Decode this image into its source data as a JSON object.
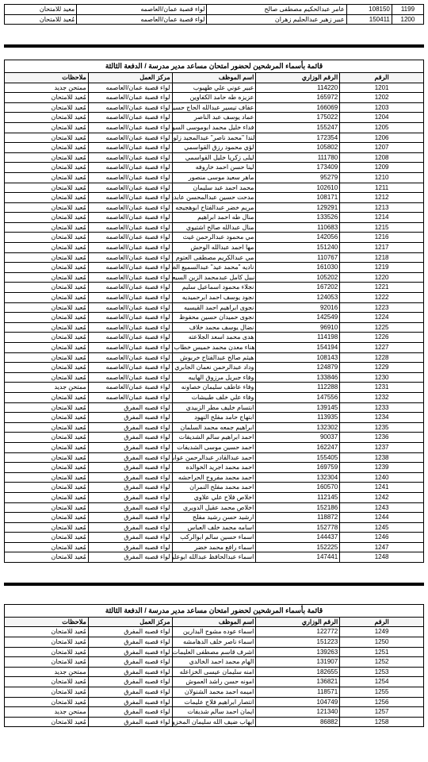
{
  "titles": {
    "main": "قائمة بأسماء المرشحين لحضور امتحان مساعد مدير مدرسة / الدفعة الثالثة"
  },
  "headers": {
    "idx": "الرقم",
    "ministry": "الرقم الوزاري",
    "employee": "اسم الموظف",
    "center": "مركز العمل",
    "notes": "ملاحظات"
  },
  "topRows": [
    {
      "idx": "1199",
      "min": "108150",
      "name": "عامر عبدالحكيم مصطفى صالح",
      "center": "لواء قصبة عمان/العاصمه",
      "notes": "معيد للامتحان"
    },
    {
      "idx": "1200",
      "min": "150411",
      "name": "عبير زهير عبدالحليم زهران",
      "center": "لواء قصبة عمان/العاصمه",
      "notes": "مُعيد للامتحان"
    }
  ],
  "section1": [
    {
      "idx": "1201",
      "min": "114220",
      "name": "عبير عوني علي طهبوب",
      "center": "لواء قصبة عمان/العاصمه",
      "notes": "ممتحن جديد"
    },
    {
      "idx": "1202",
      "min": "165972",
      "name": "عزيزه طه حامد الكفاوين",
      "center": "لواء قصبة عمان/العاصمه",
      "notes": "مُعيد للامتحان"
    },
    {
      "idx": "1203",
      "min": "166069",
      "name": "عفاف تيسير عبدالله الحاج حسين",
      "center": "لواء قصبة عمان/العاصمه",
      "notes": "مُعيد للامتحان"
    },
    {
      "idx": "1204",
      "min": "175022",
      "name": "عماد يوسف عبد الناصر",
      "center": "لواء قصبة عمان/العاصمه",
      "notes": "مُعيد للامتحان"
    },
    {
      "idx": "1205",
      "min": "155247",
      "name": "فداء خليل محمد ابوموسى السوطري",
      "center": "لواء قصبة عمان/العاصمه",
      "notes": "مُعيد للامتحان"
    },
    {
      "idx": "1206",
      "min": "172354",
      "name": "لندا \"محمد ناصر\" عبدالمجيد زلوم",
      "center": "لواء قصبة عمان/العاصمه",
      "notes": "مُعيد للامتحان"
    },
    {
      "idx": "1207",
      "min": "105802",
      "name": "لؤي محمود رزق القواسمي",
      "center": "لواء قصبة عمان/العاصمه",
      "notes": "مُعيد للامتحان"
    },
    {
      "idx": "1208",
      "min": "111780",
      "name": "ليلى زكريا خليل القواسمي",
      "center": "لواء قصبة عمان/العاصمه",
      "notes": "مُعيد للامتحان"
    },
    {
      "idx": "1209",
      "min": "173409",
      "name": "لينا حسن احمد خاروفه",
      "center": "لواء قصبة عمان/العاصمه",
      "notes": "مُعيد للامتحان"
    },
    {
      "idx": "1210",
      "min": "95279",
      "name": "ماهر سعيد موسى منصور",
      "center": "لواء قصبة عمان/العاصمه",
      "notes": "مُعيد للامتحان"
    },
    {
      "idx": "1211",
      "min": "102610",
      "name": "محمد احمد عبد سليمان",
      "center": "لواء قصبة عمان/العاصمه",
      "notes": "مُعيد للامتحان"
    },
    {
      "idx": "1212",
      "min": "108171",
      "name": "مدحت حسين عبدالمحسن عابدين",
      "center": "لواء قصبة عمان/العاصمه",
      "notes": "مُعيد للامتحان"
    },
    {
      "idx": "1213",
      "min": "129291",
      "name": "مريم خضر عبدالفتاح ابوهجيجه",
      "center": "لواء قصبة عمان/العاصمه",
      "notes": "مُعيد للامتحان"
    },
    {
      "idx": "1214",
      "min": "133526",
      "name": "منال طه احمد ابراهيم",
      "center": "لواء قصبة عمان/العاصمه",
      "notes": "مُعيد للامتحان"
    },
    {
      "idx": "1215",
      "min": "110683",
      "name": "منال عبدالله صالح اشتيوي",
      "center": "لواء قصبة عمان/العاصمه",
      "notes": "مُعيد للامتحان"
    },
    {
      "idx": "1216",
      "min": "142056",
      "name": "مي محمود عبدالرحمن غيث",
      "center": "لواء قصبة عمان/العاصمه",
      "notes": "مُعيد للامتحان"
    },
    {
      "idx": "1217",
      "min": "151240",
      "name": "مها احمد عبدالله الوحش",
      "center": "لواء قصبة عمان/العاصمه",
      "notes": "مُعيد للامتحان"
    },
    {
      "idx": "1218",
      "min": "110767",
      "name": "مي عبدالكريم مصطفى العتوم",
      "center": "لواء قصبة عمان/العاصمه",
      "notes": "مُعيد للامتحان"
    },
    {
      "idx": "1219",
      "min": "161030",
      "name": "ناديه \"محمد عيد\" عبدالسميع الطباخي",
      "center": "لواء قصبة عمان/العاصمه",
      "notes": "مُعيد للامتحان"
    },
    {
      "idx": "1220",
      "min": "105202",
      "name": "نبيل كامل عبدمحمد الزبن السيعوري",
      "center": "لواء قصبة عمان/العاصمه",
      "notes": "مُعيد للامتحان"
    },
    {
      "idx": "1221",
      "min": "167202",
      "name": "نجلاء محمود اسماعيل سليم",
      "center": "لواء قصبة عمان/العاصمه",
      "notes": "مُعيد للامتحان"
    },
    {
      "idx": "1222",
      "min": "124053",
      "name": "نجود يوسف احمد ابرحميديه",
      "center": "لواء قصبة عمان/العاصمه",
      "notes": "مُعيد للامتحان"
    },
    {
      "idx": "1223",
      "min": "92016",
      "name": "نجوى ابراهيم احمد القيسيه",
      "center": "لواء قصبة عمان/العاصمه",
      "notes": "مُعيد للامتحان"
    },
    {
      "idx": "1224",
      "min": "142549",
      "name": "نجوى حميدان حسين محفوظ",
      "center": "لواء قصبة عمان/العاصمه",
      "notes": "مُعيد للامتحان"
    },
    {
      "idx": "1225",
      "min": "96910",
      "name": "نضال يوسف محمد خلاف",
      "center": "لواء قصبة عمان/العاصمه",
      "notes": "مُعيد للامتحان"
    },
    {
      "idx": "1226",
      "min": "114198",
      "name": "هدى محمد اسعد الجلاعته",
      "center": "لواء قصبة عمان/العاصمه",
      "notes": "مُعيد للامتحان"
    },
    {
      "idx": "1227",
      "min": "154194",
      "name": "هناء معدن محمد خميس خطاب",
      "center": "لواء قصبة عمان/العاصمه",
      "notes": "مُعيد للامتحان"
    },
    {
      "idx": "1228",
      "min": "108143",
      "name": "هيثم صالح عبدالفتاح خربوش",
      "center": "لواء قصبة عمان/العاصمه",
      "notes": "مُعيد للامتحان"
    },
    {
      "idx": "1229",
      "min": "124879",
      "name": "وداد عبدالرحمن نعمان الجابري",
      "center": "لواء قصبة عمان/العاصمه",
      "notes": "مُعيد للامتحان"
    },
    {
      "idx": "1230",
      "min": "133846",
      "name": "وفاء جبريل مرزوق الهايبه",
      "center": "لواء قصبة عمان/العاصمه",
      "notes": "مُعيد للامتحان"
    },
    {
      "idx": "1231",
      "min": "112288",
      "name": "وفاء عاطف سليمان خصاونه",
      "center": "لواء قصبة عمان/العاصمه",
      "notes": "ممتحن جديد"
    },
    {
      "idx": "1232",
      "min": "147556",
      "name": "وفاء علي خلف طبيشات",
      "center": "لواء قصبة عمان/العاصمه",
      "notes": "مُعيد للامتحان"
    },
    {
      "idx": "1233",
      "min": "139145",
      "name": "ابتسام خليف مطر الزبيدي",
      "center": "لواء قصبه المفرق",
      "notes": "مُعيد للامتحان"
    },
    {
      "idx": "1234",
      "min": "113935",
      "name": "ابتهاج حامد مفلح النهود",
      "center": "لواء قصبه المفرق",
      "notes": "مُعيد للامتحان"
    },
    {
      "idx": "1235",
      "min": "132302",
      "name": "ابراهيم جمعه محمد السلمان",
      "center": "لواء قصبه المفرق",
      "notes": "مُعيد للامتحان"
    },
    {
      "idx": "1236",
      "min": "90037",
      "name": "احمد ابراهيم سالم الشديفات",
      "center": "لواء قصبه المفرق",
      "notes": "مُعيد للامتحان"
    },
    {
      "idx": "1237",
      "min": "162247",
      "name": "احمد حسين موسى الشديفات",
      "center": "لواء قصبه المفرق",
      "notes": "مُعيد للامتحان"
    },
    {
      "idx": "1238",
      "min": "155405",
      "name": "احمد عبدالقادر عبدالرحمن عوابشه",
      "center": "لواء قصبه المفرق",
      "notes": "مُعيد للامتحان"
    },
    {
      "idx": "1239",
      "min": "169759",
      "name": "احمد محمد اجريد الخوالده",
      "center": "لواء قصبه المفرق",
      "notes": "مُعيد للامتحان"
    },
    {
      "idx": "1240",
      "min": "132304",
      "name": "احمد محمد مفروج الحراحشه",
      "center": "لواء قصبه المفرق",
      "notes": "مُعيد للامتحان"
    },
    {
      "idx": "1241",
      "min": "160570",
      "name": "احمد محمد مفلح النمران",
      "center": "لواء قصبه المفرق",
      "notes": "مُعيد للامتحان"
    },
    {
      "idx": "1242",
      "min": "112145",
      "name": "اخلاص فلاح علي علاوي",
      "center": "لواء قصبه المفرق",
      "notes": "مُعيد للامتحان"
    },
    {
      "idx": "1243",
      "min": "152186",
      "name": "اخلاص محمد عقيل الدويري",
      "center": "لواء قصبه المفرق",
      "notes": "مُعيد للامتحان"
    },
    {
      "idx": "1244",
      "min": "118872",
      "name": "ارشيد حسن رشيد مفلح",
      "center": "لواء قصبه المفرق",
      "notes": "مُعيد للامتحان"
    },
    {
      "idx": "1245",
      "min": "152778",
      "name": "اسامه محمد خلف العباس",
      "center": "لواء قصبه المفرق",
      "notes": "مُعيد للامتحان"
    },
    {
      "idx": "1246",
      "min": "144437",
      "name": "اسماء حسين سالم ابوالركب",
      "center": "لواء قصبه المفرق",
      "notes": "مُعيد للامتحان"
    },
    {
      "idx": "1247",
      "min": "152225",
      "name": "اسماء رافع محمد خضر",
      "center": "لواء قصبه المفرق",
      "notes": "مُعيد للامتحان"
    },
    {
      "idx": "1248",
      "min": "147441",
      "name": "اسماء عبدالحافظ عبدالله ابوعليم",
      "center": "لواء قصبه المفرق",
      "notes": "مُعيد للامتحان"
    }
  ],
  "section2": [
    {
      "idx": "1249",
      "min": "122772",
      "name": "اسماء عوده مشوح البدارين",
      "center": "لواء قصبه المفرق",
      "notes": "مُعيد للامتحان"
    },
    {
      "idx": "1250",
      "min": "151223",
      "name": "اسماء ناصر خلف الدهامشه",
      "center": "لواء قصبه المفرق",
      "notes": "مُعيد للامتحان"
    },
    {
      "idx": "1251",
      "min": "139263",
      "name": "اشرف قاسم مصطفى العليمات",
      "center": "لواء قصبه المفرق",
      "notes": "مُعيد للامتحان"
    },
    {
      "idx": "1252",
      "min": "131907",
      "name": "الهام محمد احمد الخالدي",
      "center": "لواء قصبه المفرق",
      "notes": "مُعيد للامتحان"
    },
    {
      "idx": "1253",
      "min": "182655",
      "name": "امنه سليمان عيسى الخزاعله",
      "center": "لواء قصبه المفرق",
      "notes": "ممتحن جديد"
    },
    {
      "idx": "1254",
      "min": "136821",
      "name": "امونه حسن راشد العموش",
      "center": "لواء قصبه المفرق",
      "notes": "مُعيد للامتحان"
    },
    {
      "idx": "1255",
      "min": "118571",
      "name": "اميمه احمد محمد الشنولان",
      "center": "لواء قصبه المفرق",
      "notes": "مُعيد للامتحان"
    },
    {
      "idx": "1256",
      "min": "104749",
      "name": "انتصار ابراهيم فلاح عليمات",
      "center": "لواء قصبه المفرق",
      "notes": "مُعيد للامتحان"
    },
    {
      "idx": "1257",
      "min": "121340",
      "name": "ايمان احمد سالم شديفات",
      "center": "لواء قصبه المفرق",
      "notes": "ممتحن جديد"
    },
    {
      "idx": "1258",
      "min": "86882",
      "name": "ايهاب ضيف الله سليمان المخزومي",
      "center": "لواء قصبه المفرق",
      "notes": "مُعيد للامتحان"
    }
  ]
}
